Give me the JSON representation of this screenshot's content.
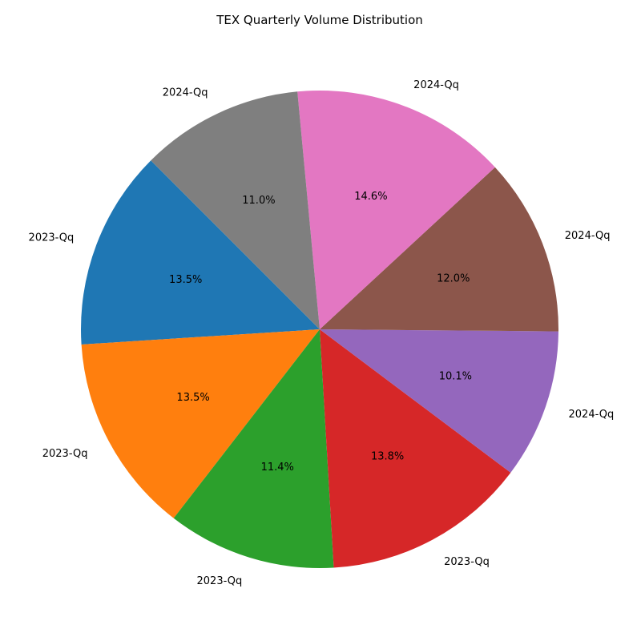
{
  "chart_data": {
    "type": "pie",
    "title": "TEX Quarterly Volume Distribution",
    "start_angle_deg": 135,
    "direction": "counterclockwise",
    "slices": [
      {
        "label": "2023-Qq",
        "pct_label": "13.5%",
        "value": 13.5,
        "color": "#1f77b4"
      },
      {
        "label": "2023-Qq",
        "pct_label": "13.5%",
        "value": 13.5,
        "color": "#ff7f0e"
      },
      {
        "label": "2023-Qq",
        "pct_label": "11.4%",
        "value": 11.4,
        "color": "#2ca02c"
      },
      {
        "label": "2023-Qq",
        "pct_label": "13.8%",
        "value": 13.8,
        "color": "#d62728"
      },
      {
        "label": "2024-Qq",
        "pct_label": "10.1%",
        "value": 10.1,
        "color": "#9467bd"
      },
      {
        "label": "2024-Qq",
        "pct_label": "12.0%",
        "value": 12.0,
        "color": "#8c564b"
      },
      {
        "label": "2024-Qq",
        "pct_label": "14.6%",
        "value": 14.6,
        "color": "#e377c2"
      },
      {
        "label": "2024-Qq",
        "pct_label": "11.0%",
        "value": 11.0,
        "color": "#7f7f7f"
      }
    ]
  }
}
